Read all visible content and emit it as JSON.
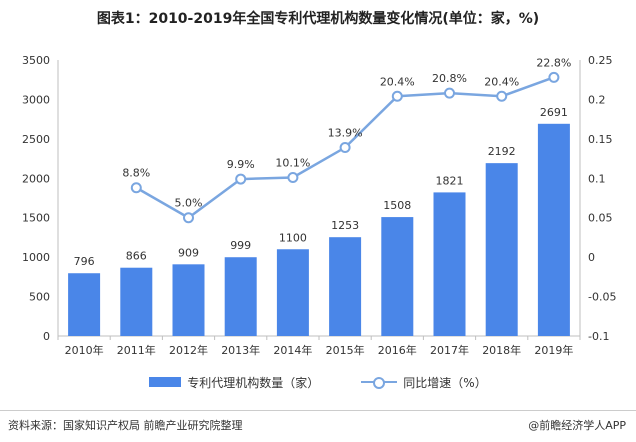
{
  "title": "图表1：2010-2019年全国专利代理机构数量变化情况(单位：家，%)",
  "source": "资料来源：国家知识产权局 前瞻产业研究院整理",
  "brand": "@前瞻经济学人APP",
  "colors": {
    "bar": "#4a86e8",
    "line": "#7aa6e0",
    "axis": "#bfbfbf"
  },
  "chart_data": {
    "type": "bar+line",
    "categories": [
      "2010年",
      "2011年",
      "2012年",
      "2013年",
      "2014年",
      "2015年",
      "2016年",
      "2017年",
      "2018年",
      "2019年"
    ],
    "series": [
      {
        "name": "专利代理机构数量（家）",
        "type": "bar",
        "axis": "left",
        "values": [
          796,
          866,
          909,
          999,
          1100,
          1253,
          1508,
          1821,
          2192,
          2691
        ],
        "labels": [
          "796",
          "866",
          "909",
          "999",
          "1100",
          "1253",
          "1508",
          "1821",
          "2192",
          "2691"
        ]
      },
      {
        "name": "同比增速（%）",
        "type": "line",
        "axis": "right",
        "values": [
          null,
          0.088,
          0.05,
          0.099,
          0.101,
          0.139,
          0.204,
          0.208,
          0.204,
          0.228
        ],
        "labels": [
          "",
          "8.8%",
          "5.0%",
          "9.9%",
          "10.1%",
          "13.9%",
          "20.4%",
          "20.8%",
          "20.4%",
          "22.8%"
        ]
      }
    ],
    "y_left": {
      "min": 0,
      "max": 3500,
      "ticks": [
        "0",
        "500",
        "1000",
        "1500",
        "2000",
        "2500",
        "3000",
        "3500"
      ]
    },
    "y_right": {
      "min": -0.1,
      "max": 0.25,
      "ticks": [
        "-0.1",
        "-0.05",
        "0",
        "0.05",
        "0.1",
        "0.15",
        "0.2",
        "0.25"
      ]
    },
    "grid": false,
    "legend": "bottom"
  }
}
